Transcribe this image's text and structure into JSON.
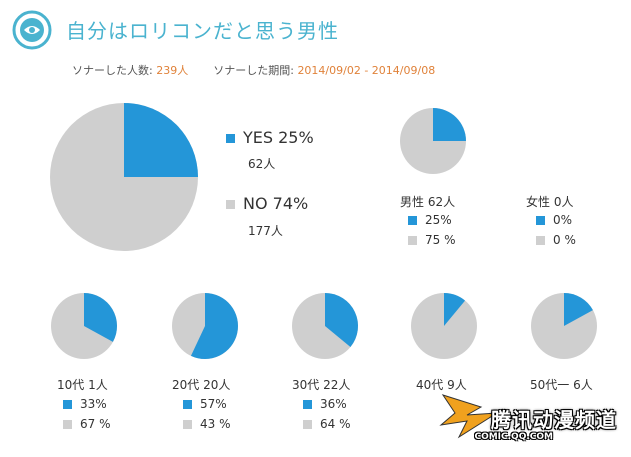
{
  "header": {
    "title": "自分はロリコンだと思う男性",
    "respondents_label": "ソナーした人数:",
    "respondents_value": "239人",
    "period_label": "ソナーした期間:",
    "period_value": "2014/09/02 - 2014/09/08"
  },
  "colors": {
    "yes": "#2496d8",
    "no": "#cfcfcf",
    "accent": "#4ab3cf",
    "highlight": "#e0823a"
  },
  "chart_data": [
    {
      "type": "pie",
      "id": "overall",
      "slices": [
        {
          "label": "YES 25%",
          "percent": 25,
          "count": "62人"
        },
        {
          "label": "NO 74%",
          "percent": 74,
          "count": "177人"
        }
      ]
    },
    {
      "type": "pie",
      "id": "by_gender",
      "groups": [
        {
          "label": "男性 62人",
          "yes": 25,
          "no": 75,
          "yes_label": "25%",
          "no_label": "75 %"
        },
        {
          "label": "女性 0人",
          "yes": 0,
          "no": 0,
          "yes_label": "0%",
          "no_label": "0 %"
        }
      ]
    },
    {
      "type": "pie",
      "id": "by_age",
      "groups": [
        {
          "label": "10代 1人",
          "yes": 33,
          "no": 67,
          "yes_label": "33%",
          "no_label": "67 %"
        },
        {
          "label": "20代 20人",
          "yes": 57,
          "no": 43,
          "yes_label": "57%",
          "no_label": "43 %"
        },
        {
          "label": "30代 22人",
          "yes": 36,
          "no": 64,
          "yes_label": "36%",
          "no_label": "64 %"
        },
        {
          "label": "40代 9人",
          "yes": 11,
          "no": 89,
          "yes_label": "",
          "no_label": ""
        },
        {
          "label": "50代一 6人",
          "yes": 17,
          "no": 83,
          "yes_label": "",
          "no_label": ""
        }
      ]
    }
  ],
  "watermark": {
    "text": "腾讯动漫频道",
    "url": "COMIC.QQ.COM"
  }
}
